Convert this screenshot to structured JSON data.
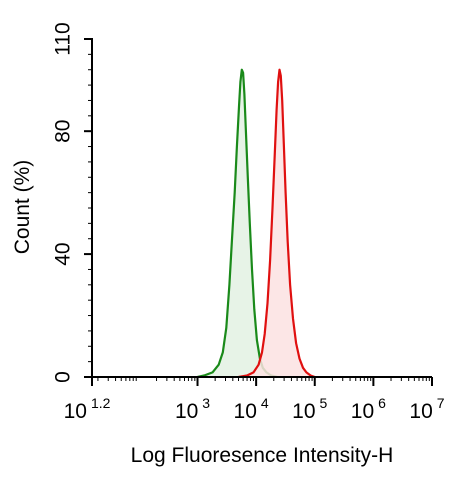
{
  "chart_data": {
    "type": "area",
    "xlabel": "Log Fluoresence Intensity-H",
    "ylabel": "Count  (%)",
    "x_scale": "log10",
    "xlim": [
      15.85,
      10000000
    ],
    "ylim": [
      0,
      110
    ],
    "x_ticks": [
      {
        "value": 15.85,
        "base": "10",
        "exp": "1.2"
      },
      {
        "value": 1000,
        "base": "10",
        "exp": "3"
      },
      {
        "value": 10000,
        "base": "10",
        "exp": "4"
      },
      {
        "value": 100000,
        "base": "10",
        "exp": "5"
      },
      {
        "value": 1000000,
        "base": "10",
        "exp": "6"
      },
      {
        "value": 10000000,
        "base": "10",
        "exp": "7"
      }
    ],
    "y_ticks": [
      0,
      40,
      80,
      110
    ],
    "grid": false,
    "series": [
      {
        "color": "#1a8a1a",
        "fill": "#e3f1e3",
        "points": [
          [
            1000,
            0
          ],
          [
            1300,
            0.5
          ],
          [
            1800,
            1.5
          ],
          [
            2300,
            4
          ],
          [
            2700,
            8
          ],
          [
            3100,
            16
          ],
          [
            3500,
            30
          ],
          [
            3900,
            46
          ],
          [
            4300,
            60
          ],
          [
            4700,
            75
          ],
          [
            5100,
            88
          ],
          [
            5400,
            96
          ],
          [
            5700,
            100
          ],
          [
            6000,
            99
          ],
          [
            6300,
            92
          ],
          [
            6700,
            80
          ],
          [
            7200,
            65
          ],
          [
            7800,
            50
          ],
          [
            8500,
            35
          ],
          [
            9300,
            22
          ],
          [
            10300,
            12
          ],
          [
            11600,
            6
          ],
          [
            13000,
            3
          ],
          [
            15000,
            1.5
          ],
          [
            18000,
            0.5
          ],
          [
            23000,
            0
          ]
        ]
      },
      {
        "color": "#e01010",
        "fill": "#fbe2e2",
        "points": [
          [
            5000,
            0
          ],
          [
            7000,
            0.5
          ],
          [
            9000,
            1.5
          ],
          [
            11000,
            4
          ],
          [
            12600,
            8
          ],
          [
            14000,
            14
          ],
          [
            15600,
            24
          ],
          [
            17300,
            38
          ],
          [
            19000,
            55
          ],
          [
            20700,
            72
          ],
          [
            22300,
            87
          ],
          [
            23700,
            96
          ],
          [
            25000,
            100
          ],
          [
            26300,
            98
          ],
          [
            27800,
            90
          ],
          [
            29600,
            76
          ],
          [
            31800,
            60
          ],
          [
            34500,
            44
          ],
          [
            38000,
            30
          ],
          [
            42500,
            19
          ],
          [
            48000,
            11
          ],
          [
            55000,
            6
          ],
          [
            63000,
            3
          ],
          [
            72000,
            1.5
          ],
          [
            85000,
            0.5
          ],
          [
            100000,
            0
          ]
        ]
      }
    ]
  }
}
